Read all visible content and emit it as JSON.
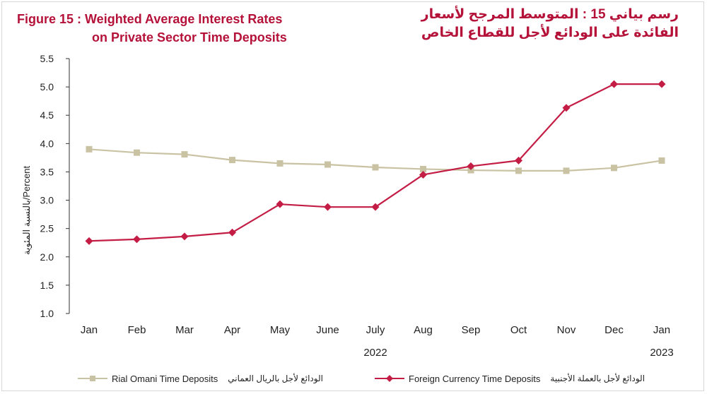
{
  "title": {
    "en_line1": "Figure 15 : Weighted Average Interest Rates",
    "en_line2": "on Private Sector Time Deposits",
    "ar_line1": "رسم بياني 15 : المتوسط المرجح لأسعار",
    "ar_line2": "الفائدة على الودائع لأجل للقطاع الخاص"
  },
  "ylabel": "بالنسبة المئوية/Percent",
  "colors": {
    "title": "#b5123a",
    "rial": "#c9c3a4",
    "foreign": "#c41d45",
    "axis": "#222222"
  },
  "chart_data": {
    "type": "line",
    "categories": [
      "Jan",
      "Feb",
      "Mar",
      "Apr",
      "May",
      "June",
      "July",
      "Aug",
      "Sep",
      "Oct",
      "Nov",
      "Dec",
      "Jan"
    ],
    "year_labels": [
      {
        "label": "2022",
        "category_index": 6
      },
      {
        "label": "2023",
        "category_index": 12
      }
    ],
    "yticks": [
      "1.0",
      "1.5",
      "2.0",
      "2.5",
      "3.0",
      "3.5",
      "4.0",
      "4.5",
      "5.0",
      "5.5"
    ],
    "ylim": [
      1.0,
      5.5
    ],
    "grid": false,
    "legend_position": "bottom",
    "series": [
      {
        "name": "Rial Omani Time Deposits",
        "name_ar": "الودائع لأجل بالريال العماني",
        "marker": "square",
        "color": "#c9c3a4",
        "values": [
          3.9,
          3.84,
          3.81,
          3.71,
          3.65,
          3.63,
          3.58,
          3.55,
          3.53,
          3.52,
          3.52,
          3.57,
          3.7
        ]
      },
      {
        "name": "Foreign Currency Time Deposits",
        "name_ar": "الودائع لأجل بالعملة الأجنبية",
        "marker": "diamond",
        "color": "#c41d45",
        "values": [
          2.28,
          2.31,
          2.36,
          2.43,
          2.93,
          2.88,
          2.88,
          3.45,
          3.6,
          3.7,
          4.63,
          5.05,
          5.05
        ]
      }
    ]
  }
}
